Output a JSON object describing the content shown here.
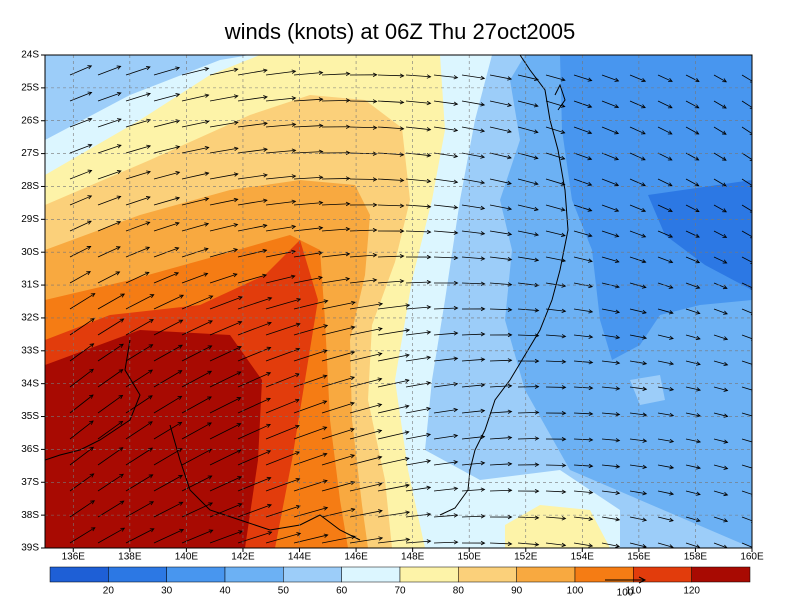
{
  "map": {
    "title": "winds (knots) at 06Z Thu 27oct2005",
    "xlim": [
      135,
      160
    ],
    "ylim": [
      -39,
      -24
    ],
    "lat_ticks": [
      {
        "value": -24,
        "label": "24S"
      },
      {
        "value": -25,
        "label": "25S"
      },
      {
        "value": -26,
        "label": "26S"
      },
      {
        "value": -27,
        "label": "27S"
      },
      {
        "value": -28,
        "label": "28S"
      },
      {
        "value": -29,
        "label": "29S"
      },
      {
        "value": -30,
        "label": "30S"
      },
      {
        "value": -31,
        "label": "31S"
      },
      {
        "value": -32,
        "label": "32S"
      },
      {
        "value": -33,
        "label": "33S"
      },
      {
        "value": -34,
        "label": "34S"
      },
      {
        "value": -35,
        "label": "35S"
      },
      {
        "value": -36,
        "label": "36S"
      },
      {
        "value": -37,
        "label": "37S"
      },
      {
        "value": -38,
        "label": "38S"
      },
      {
        "value": -39,
        "label": "39S"
      }
    ],
    "lon_ticks": [
      {
        "value": 136,
        "label": "136E"
      },
      {
        "value": 138,
        "label": "138E"
      },
      {
        "value": 140,
        "label": "140E"
      },
      {
        "value": 142,
        "label": "142E"
      },
      {
        "value": 144,
        "label": "144E"
      },
      {
        "value": 146,
        "label": "146E"
      },
      {
        "value": 148,
        "label": "148E"
      },
      {
        "value": 150,
        "label": "150E"
      },
      {
        "value": 152,
        "label": "152E"
      },
      {
        "value": 154,
        "label": "154E"
      },
      {
        "value": 156,
        "label": "156E"
      },
      {
        "value": 158,
        "label": "158E"
      },
      {
        "value": 160,
        "label": "160E"
      }
    ],
    "colorbar": {
      "levels": [
        20,
        30,
        40,
        50,
        60,
        70,
        80,
        90,
        100,
        110,
        120
      ],
      "colors": [
        "#1e5fd6",
        "#2c78e4",
        "#4896ef",
        "#6cb1f4",
        "#9ccdf9",
        "#dcf6ff",
        "#fdf3a8",
        "#fbd07a",
        "#f8a940",
        "#f57c14",
        "#e23c0c",
        "#a80a02"
      ]
    },
    "reference_vector": "100"
  }
}
